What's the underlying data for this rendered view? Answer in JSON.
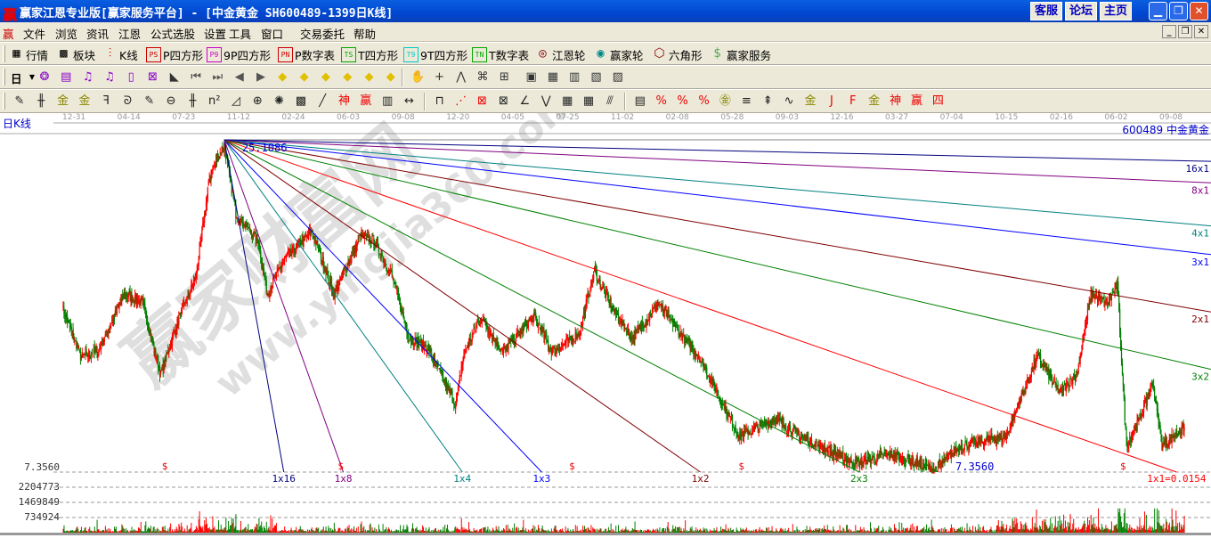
{
  "window": {
    "title": "赢家江恩专业版[赢家服务平台] - [中金黄金   SH600489-1399日K线]",
    "logo": "赢",
    "links": [
      "客服",
      "论坛",
      "主页"
    ],
    "controls": [
      "minimize",
      "restore",
      "close"
    ]
  },
  "menu": {
    "logo": "赢",
    "items": [
      "文件",
      "浏览",
      "资讯",
      "江恩",
      "公式选股",
      "设置",
      "工具",
      "窗口",
      "交易委托",
      "帮助"
    ]
  },
  "toolbar1": [
    {
      "icon": "table-icon",
      "glyph": "▦",
      "label": "行情"
    },
    {
      "icon": "blocks-icon",
      "glyph": "▩",
      "label": "板块"
    },
    {
      "icon": "candlestick-icon",
      "glyph": "⫶",
      "label": "K线"
    },
    {
      "icon": "ps-icon",
      "glyph": "PS",
      "label": "P四方形"
    },
    {
      "icon": "p9-icon",
      "glyph": "P9",
      "label": "9P四方形"
    },
    {
      "icon": "pn-icon",
      "glyph": "PN",
      "label": "P数字表"
    },
    {
      "icon": "ts-icon",
      "glyph": "TS",
      "label": "T四方形"
    },
    {
      "icon": "t9-icon",
      "glyph": "T9",
      "label": "9T四方形"
    },
    {
      "icon": "tn-icon",
      "glyph": "TN",
      "label": "T数字表"
    },
    {
      "icon": "gann-wheel-icon",
      "glyph": "◎",
      "label": "江恩轮"
    },
    {
      "icon": "big-wheel-icon",
      "glyph": "◉",
      "label": "赢家轮"
    },
    {
      "icon": "hexagon-icon",
      "glyph": "⬡",
      "label": "六角形"
    },
    {
      "icon": "dollar-icon",
      "glyph": "$",
      "label": "赢家服务"
    }
  ],
  "toolbar2": {
    "period": "日",
    "icons": [
      "network-icon",
      "notes-icon",
      "kline3-icon",
      "kline9-icon",
      "candle-icon",
      "formula-icon",
      "histogram-icon",
      "first-icon",
      "last-icon",
      "left-icon",
      "right-icon",
      "diamond-left-icon",
      "diamond-right-icon",
      "diamond-h-icon",
      "diamond-shrink-icon",
      "diamond-expand-icon",
      "diamond-all-icon",
      "hand-icon",
      "crosshair-icon",
      "line-draw-icon",
      "pattern-icon",
      "multi-icon",
      "calendar-icon",
      "calculator-icon",
      "report-icon",
      "save-icon",
      "print-icon"
    ]
  },
  "toolbar3": {
    "icons": [
      "pen-icon",
      "parallel-icon",
      "gold-icon",
      "gold2-icon",
      "f-icon",
      "spiral-icon",
      "brush-icon",
      "circle-icon",
      "grid-icon",
      "n2-icon",
      "triangle-icon",
      "target-icon",
      "web-icon",
      "square-web-icon",
      "angle-icon",
      "god-icon",
      "win-icon",
      "bars-icon",
      "measure-icon",
      "box-icon",
      "fan-icon",
      "square-fan-icon",
      "square-diag-icon",
      "angle2-icon",
      "wave-icon",
      "grid2-icon",
      "grid3-icon",
      "lines-icon",
      "text-icon",
      "percent-fan-icon",
      "percent-icon",
      "percent-lines-icon",
      "gold-circle-icon",
      "gold-lines-icon",
      "arrow-icon",
      "sine-icon",
      "gold-line-icon",
      "j-fan-icon",
      "f-fan-icon",
      "gold-fan-icon",
      "god-fan-icon",
      "win-fan-icon",
      "four-fan-icon"
    ]
  },
  "chart": {
    "period_label": "日K线",
    "stock_label": "600489 中金黄金",
    "dates": [
      "12-31",
      "04-14",
      "07-23",
      "11-12",
      "02-24",
      "06-03",
      "09-08",
      "12-20",
      "04-05",
      "07-25",
      "11-02",
      "02-08",
      "05-28",
      "09-03",
      "12-16",
      "03-27",
      "07-04",
      "10-15",
      "02-16",
      "06-02",
      "09-08"
    ],
    "price_axis": {
      "min_label": "7.3560",
      "min": 7.356,
      "max": 25.1086
    },
    "apex": {
      "bar": 196,
      "price": 25.1086,
      "label": "25.1086"
    },
    "low_marker": "7.3560",
    "total_bars": 1399,
    "gann_slope": 0.0154,
    "gann_lines": [
      {
        "label": "1x16",
        "factor": 16,
        "color": "#000080"
      },
      {
        "label": "1x8",
        "factor": 8,
        "color": "#800080"
      },
      {
        "label": "1x4",
        "factor": 4,
        "color": "#008080"
      },
      {
        "label": "1x3",
        "factor": 3,
        "color": "#0000ff"
      },
      {
        "label": "1x2",
        "factor": 2,
        "color": "#800000"
      },
      {
        "label": "2x3",
        "factor": 1.5,
        "color": "#008000"
      },
      {
        "label": "1x1=0.0154",
        "factor": 1,
        "color": "#ff0000"
      },
      {
        "label": "3x2",
        "factor": 0.6667,
        "color": "#008000"
      },
      {
        "label": "2x1",
        "factor": 0.5,
        "color": "#800000"
      },
      {
        "label": "3x1",
        "factor": 0.3333,
        "color": "#0000ff"
      },
      {
        "label": "4x1",
        "factor": 0.25,
        "color": "#008080"
      },
      {
        "label": "8x1",
        "factor": 0.125,
        "color": "#800080"
      },
      {
        "label": "16x1",
        "factor": 0.0625,
        "color": "#000080"
      }
    ],
    "dollar_markers": [
      {
        "bar": 124,
        "symbol": "$"
      },
      {
        "bar": 337,
        "symbol": "$"
      },
      {
        "bar": 617,
        "symbol": "$"
      },
      {
        "bar": 822,
        "symbol": "$"
      },
      {
        "bar": 1284,
        "symbol": "$"
      }
    ],
    "price_path": [
      [
        0,
        16.17
      ],
      [
        22,
        13.54
      ],
      [
        43,
        13.78
      ],
      [
        75,
        16.87
      ],
      [
        97,
        16.4
      ],
      [
        119,
        12.59
      ],
      [
        140,
        15.45
      ],
      [
        162,
        17.83
      ],
      [
        178,
        23.06
      ],
      [
        189,
        24.25
      ],
      [
        196,
        24.8
      ],
      [
        199,
        24.01
      ],
      [
        210,
        21.16
      ],
      [
        237,
        19.73
      ],
      [
        248,
        16.87
      ],
      [
        269,
        18.78
      ],
      [
        302,
        20.21
      ],
      [
        329,
        16.87
      ],
      [
        361,
        19.97
      ],
      [
        377,
        19.73
      ],
      [
        399,
        17.83
      ],
      [
        420,
        14.5
      ],
      [
        442,
        14.02
      ],
      [
        463,
        12.12
      ],
      [
        476,
        10.93
      ],
      [
        485,
        13.54
      ],
      [
        506,
        15.69
      ],
      [
        533,
        13.78
      ],
      [
        571,
        15.69
      ],
      [
        593,
        13.78
      ],
      [
        625,
        14.73
      ],
      [
        644,
        18.07
      ],
      [
        668,
        15.92
      ],
      [
        690,
        14.5
      ],
      [
        722,
        16.4
      ],
      [
        744,
        14.97
      ],
      [
        770,
        13.54
      ],
      [
        787,
        12.12
      ],
      [
        819,
        9.26
      ],
      [
        862,
        10.21
      ],
      [
        894,
        9.26
      ],
      [
        959,
        7.83
      ],
      [
        1002,
        8.31
      ],
      [
        1056,
        7.5
      ],
      [
        1088,
        8.78
      ],
      [
        1142,
        9.26
      ],
      [
        1180,
        13.54
      ],
      [
        1207,
        11.64
      ],
      [
        1228,
        12.59
      ],
      [
        1245,
        16.87
      ],
      [
        1266,
        16.4
      ],
      [
        1277,
        17.35
      ],
      [
        1288,
        8.78
      ],
      [
        1304,
        10.21
      ],
      [
        1320,
        12.12
      ],
      [
        1331,
        8.78
      ],
      [
        1358,
        9.74
      ]
    ],
    "volume_axis": [
      "2204773",
      "1469849",
      "734924"
    ],
    "volume_step": 734924,
    "colors": {
      "up": "#ff0000",
      "down": "#008000",
      "axis": "#0000c0"
    }
  },
  "watermark": {
    "text": "赢家财富网",
    "url": "www.yingjia360.com"
  }
}
